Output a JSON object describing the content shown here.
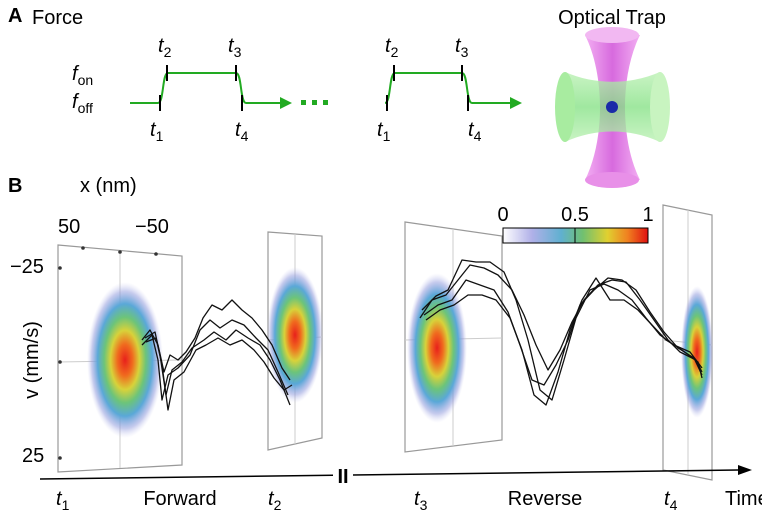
{
  "panel_a": {
    "label": "A",
    "title": "Force",
    "f_on": {
      "base": "f",
      "sub": "on"
    },
    "f_off": {
      "base": "f",
      "sub": "off"
    },
    "pulses": [
      {
        "top": [
          {
            "base": "t",
            "sub": "2"
          },
          {
            "base": "t",
            "sub": "3"
          }
        ],
        "bottom": [
          {
            "base": "t",
            "sub": "1"
          },
          {
            "base": "t",
            "sub": "4"
          }
        ]
      },
      {
        "top": [
          {
            "base": "t",
            "sub": "2"
          },
          {
            "base": "t",
            "sub": "3"
          }
        ],
        "bottom": [
          {
            "base": "t",
            "sub": "1"
          },
          {
            "base": "t",
            "sub": "4"
          }
        ]
      }
    ],
    "trap_title": "Optical Trap"
  },
  "panel_b": {
    "label": "B",
    "x_axis": {
      "title": "x (nm)",
      "ticks": [
        "50",
        "−50"
      ]
    },
    "y_axis": {
      "title": "v (mm/s)",
      "ticks": [
        "−25",
        "25"
      ]
    },
    "colorbar": {
      "ticks": [
        "0",
        "0.5",
        "1"
      ]
    },
    "time_labels": [
      {
        "base": "t",
        "sub": "1"
      },
      {
        "base": "t",
        "sub": "2"
      },
      {
        "base": "t",
        "sub": "3"
      },
      {
        "base": "t",
        "sub": "4"
      }
    ],
    "phases": [
      "Forward",
      "Reverse"
    ],
    "break": "II",
    "time_axis": "Time"
  }
}
